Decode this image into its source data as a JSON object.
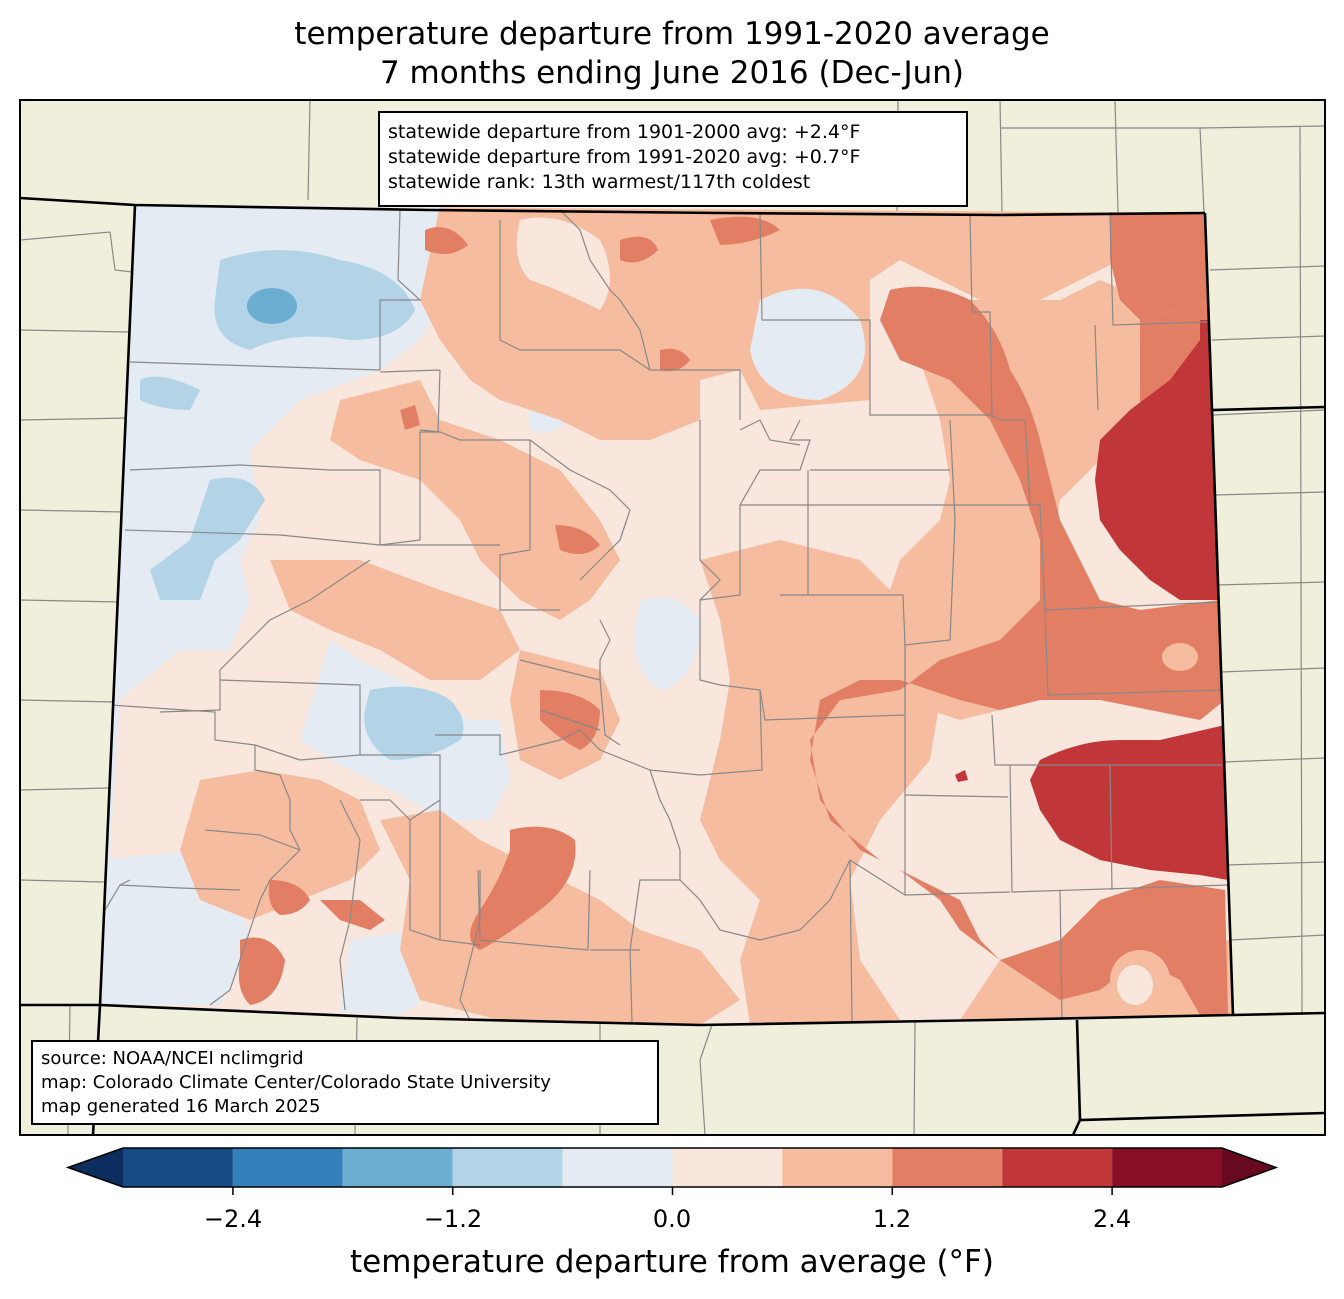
{
  "title": {
    "line1": "temperature departure from 1991-2020 average",
    "line2": "7 months ending June 2016 (Dec-Jun)"
  },
  "stats": {
    "line1": "statewide departure from 1901-2000 avg: +2.4°F",
    "line2": "statewide departure from 1991-2020 avg: +0.7°F",
    "line3": "statewide rank: 13th warmest/117th coldest"
  },
  "source": {
    "line1": "source: NOAA/NCEI nclimgrid",
    "line2": "map: Colorado Climate Center/Colorado State University",
    "line3": "map generated 16 March 2025"
  },
  "colorbar": {
    "label": "temperature departure from average (°F)",
    "ticks": [
      "−2.4",
      "−1.2",
      "0.0",
      "1.2",
      "2.4"
    ],
    "tick_values": [
      -2.4,
      -1.2,
      0.0,
      1.2,
      2.4
    ],
    "range": [
      -3.0,
      3.0
    ],
    "bins": [
      -3.0,
      -2.4,
      -1.8,
      -1.2,
      -0.6,
      0.0,
      0.6,
      1.2,
      1.8,
      2.4,
      3.0
    ],
    "colors": [
      "#164b86",
      "#3380ba",
      "#6cadd2",
      "#b2d4e6",
      "#e4ebf2",
      "#f9e6dc",
      "#f6bca0",
      "#e27e64",
      "#c13639",
      "#860f26"
    ],
    "under_color": "#0b2e5e",
    "over_color": "#670a1f"
  },
  "map_colors": {
    "land": "#efefdc",
    "county_line": "#888888",
    "state_line": "#000000"
  }
}
